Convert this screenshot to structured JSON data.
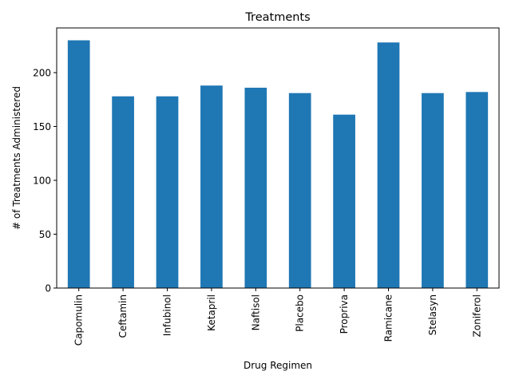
{
  "chart_data": {
    "type": "bar",
    "title": "Treatments",
    "xlabel": "Drug Regimen",
    "ylabel": "# of Treatments Administered",
    "categories": [
      "Capomulin",
      "Ceftamin",
      "Infubinol",
      "Ketapril",
      "Naftisol",
      "Placebo",
      "Propriva",
      "Ramicane",
      "Stelasyn",
      "Zoniferol"
    ],
    "values": [
      230,
      178,
      178,
      188,
      186,
      181,
      161,
      228,
      181,
      182
    ],
    "yticks": [
      0,
      50,
      100,
      150,
      200
    ],
    "ylim": [
      0,
      241.5
    ],
    "grid": false,
    "legend": "none",
    "bar_color": "#1f77b4"
  }
}
